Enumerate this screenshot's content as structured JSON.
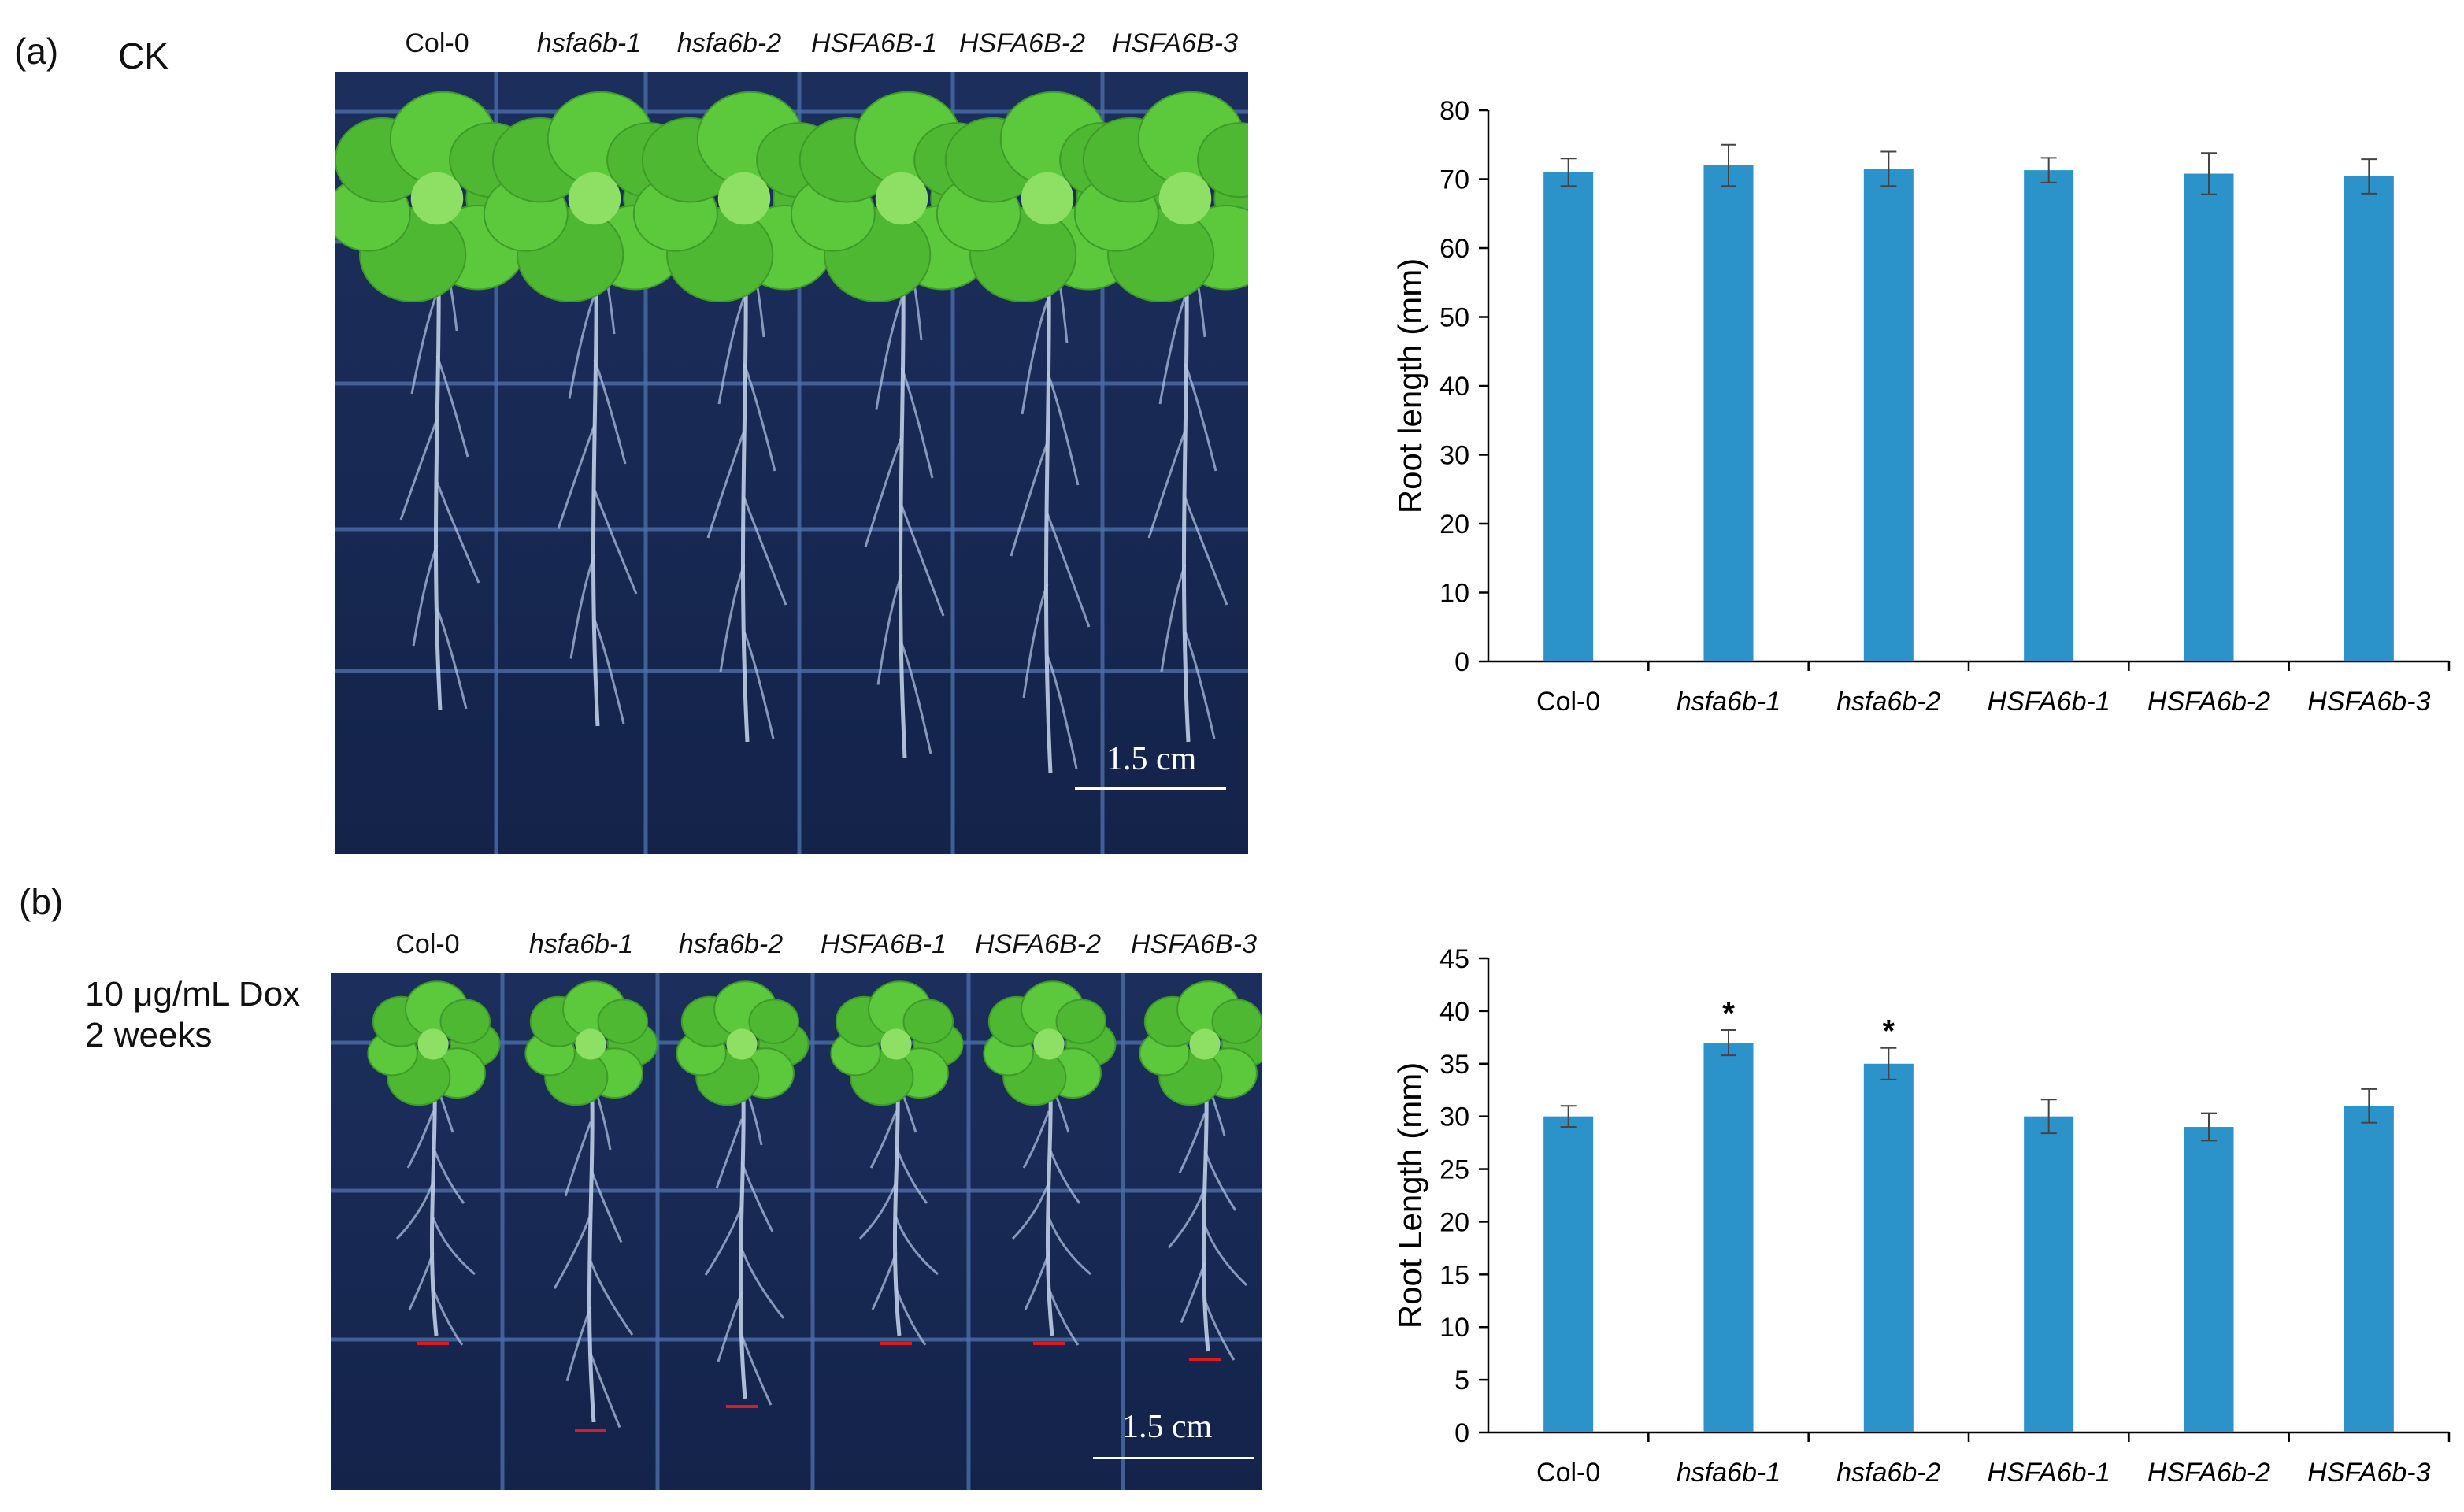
{
  "panel_a": {
    "label": "(a)",
    "condition": "CK",
    "photo_genotypes": [
      "Col-0",
      "hsfa6b-1",
      "hsfa6b-2",
      "HSFA6B-1",
      "HSFA6B-2",
      "HSFA6B-3"
    ],
    "scale_bar": "1.5 cm"
  },
  "panel_b": {
    "label": "(b)",
    "condition_line1": "10 μg/mL Dox",
    "condition_line2": "2 weeks",
    "photo_genotypes": [
      "Col-0",
      "hsfa6b-1",
      "hsfa6b-2",
      "HSFA6B-1",
      "HSFA6B-2",
      "HSFA6B-3"
    ],
    "scale_bar": "1.5 cm"
  },
  "colors": {
    "bar": "#2b93c9",
    "photo_bg": "#14244a",
    "leaf": "#5cc83c"
  },
  "chart_data": [
    {
      "type": "bar",
      "categories": [
        "Col-0",
        "hsfa6b-1",
        "hsfa6b-2",
        "HSFA6b-1",
        "HSFA6b-2",
        "HSFA6b-3"
      ],
      "values": [
        71,
        72,
        71.5,
        71.3,
        70.8,
        70.4
      ],
      "errors": [
        2,
        3,
        2.5,
        1.8,
        3,
        2.5
      ],
      "ylabel": "Root length (mm)",
      "ylim": [
        0,
        80
      ],
      "yticks": [
        0,
        10,
        20,
        30,
        40,
        50,
        60,
        70,
        80
      ],
      "significance": [
        "",
        "",
        "",
        "",
        "",
        ""
      ]
    },
    {
      "type": "bar",
      "categories": [
        "Col-0",
        "hsfa6b-1",
        "hsfa6b-2",
        "HSFA6b-1",
        "HSFA6b-2",
        "HSFA6b-3"
      ],
      "values": [
        30,
        37,
        35,
        30,
        29,
        31
      ],
      "errors": [
        1,
        1.2,
        1.5,
        1.6,
        1.3,
        1.6
      ],
      "ylabel": "Root  Length (mm)",
      "ylim": [
        0,
        45
      ],
      "yticks": [
        0,
        5,
        10,
        15,
        20,
        25,
        30,
        35,
        40,
        45
      ],
      "significance": [
        "",
        "*",
        "*",
        "",
        "",
        ""
      ]
    }
  ]
}
